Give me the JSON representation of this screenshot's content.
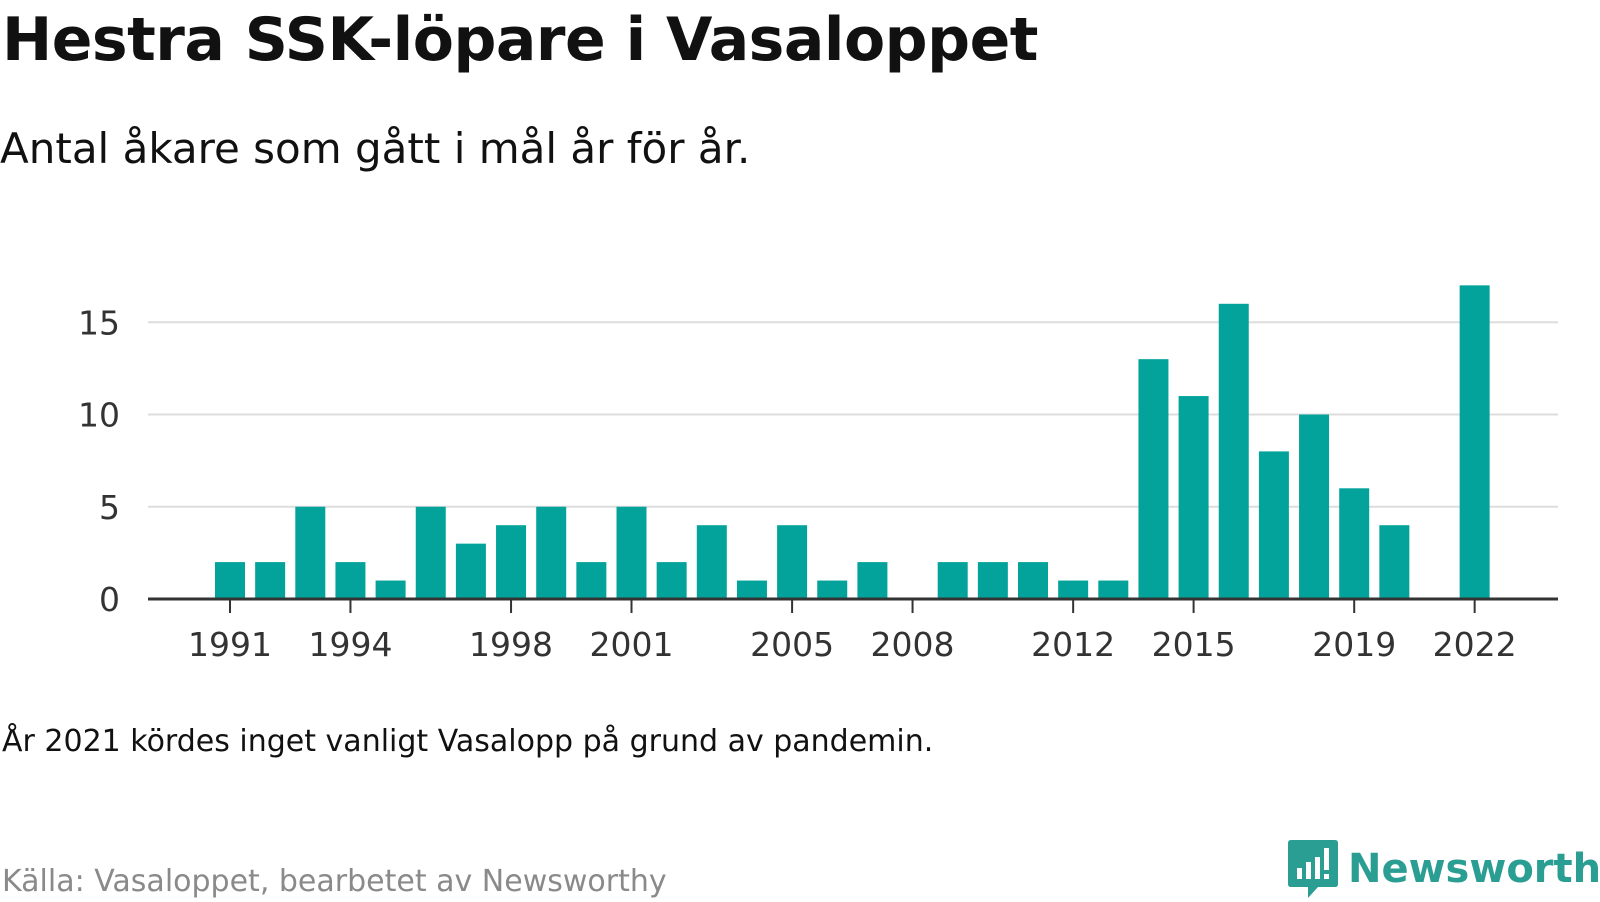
{
  "title": "Hestra SSK-löpare i Vasaloppet",
  "subtitle": "Antal åkare som gått i mål år för år.",
  "note": "År 2021 kördes inget vanligt Vasalopp på grund av pandemin.",
  "source": "Källa: Vasaloppet, bearbetet av Newsworthy",
  "brand": {
    "name": "Newsworthy",
    "logo": "newsworthy-logo-icon",
    "color": "#2b9e93"
  },
  "colors": {
    "bar": "#03a39b",
    "grid": "#dddddd",
    "axis": "#333333",
    "text": "#111111",
    "muted": "#8a8a8a"
  },
  "chart_data": {
    "type": "bar",
    "categories": [
      1991,
      1992,
      1993,
      1994,
      1995,
      1996,
      1997,
      1998,
      1999,
      2000,
      2001,
      2002,
      2003,
      2004,
      2005,
      2006,
      2007,
      2008,
      2009,
      2010,
      2011,
      2012,
      2013,
      2014,
      2015,
      2016,
      2017,
      2018,
      2019,
      2020,
      2021,
      2022
    ],
    "values": [
      2,
      2,
      5,
      2,
      1,
      5,
      3,
      4,
      5,
      2,
      5,
      2,
      4,
      1,
      4,
      1,
      2,
      null,
      2,
      2,
      2,
      1,
      1,
      13,
      11,
      16,
      8,
      10,
      6,
      4,
      null,
      17
    ],
    "xticks": [
      1991,
      1994,
      1998,
      2001,
      2005,
      2008,
      2012,
      2015,
      2019,
      2022
    ],
    "yticks": [
      0,
      5,
      10,
      15
    ],
    "ylim": [
      0,
      17
    ],
    "xlabel": "",
    "ylabel": "",
    "grid": true,
    "legend": "none"
  }
}
